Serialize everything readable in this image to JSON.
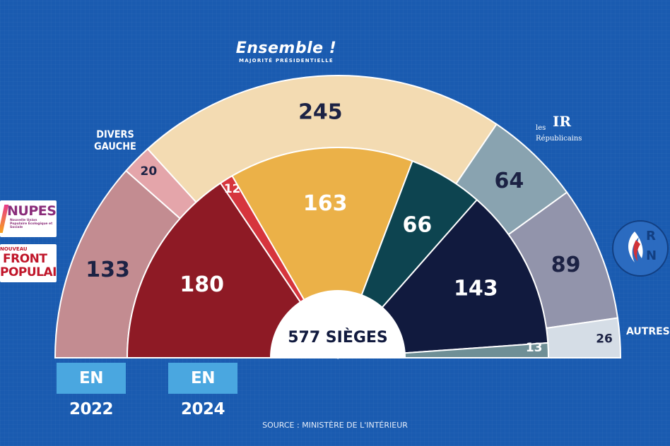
{
  "chart_data": {
    "type": "pie",
    "variant": "hemicycle",
    "title": "",
    "center_label": "577 SIÈGES",
    "source": "SOURCE : MINISTÈRE DE L'INTÉRIEUR",
    "total": 577,
    "rings": [
      {
        "label": "EN 2022",
        "segments": [
          {
            "name": "NUPES",
            "value": 133,
            "color": "#c38c91",
            "text_color": "#1c2244"
          },
          {
            "name": "DIVERS GAUCHE",
            "value": 20,
            "color": "#e4a5aa",
            "text_color": "#1c2244"
          },
          {
            "name": "Ensemble !",
            "value": 245,
            "color": "#f3dbb2",
            "text_color": "#1c2244"
          },
          {
            "name": "Les Républicains",
            "value": 64,
            "color": "#89a3b0",
            "text_color": "#1c2244"
          },
          {
            "name": "RN",
            "value": 89,
            "color": "#9294ab",
            "text_color": "#1c2244"
          },
          {
            "name": "AUTRES",
            "value": 26,
            "color": "#d5dde6",
            "text_color": "#1c2244"
          }
        ]
      },
      {
        "label": "EN 2024",
        "segments": [
          {
            "name": "Nouveau Front Populaire",
            "value": 180,
            "color": "#8e1a25",
            "text_color": "#ffffff"
          },
          {
            "name": "Divers gauche",
            "value": 12,
            "color": "#d6353d",
            "text_color": "#ffffff"
          },
          {
            "name": "Ensemble !",
            "value": 163,
            "color": "#ebb148",
            "text_color": "#ffffff"
          },
          {
            "name": "Les Républicains",
            "value": 66,
            "color": "#0d4450",
            "text_color": "#ffffff"
          },
          {
            "name": "RN",
            "value": 143,
            "color": "#111a3e",
            "text_color": "#ffffff"
          },
          {
            "name": "Autres",
            "value": 13,
            "color": "#6f8f96",
            "text_color": "#ffffff"
          }
        ]
      }
    ]
  },
  "labels": {
    "ensemble_title": "Ensemble !",
    "ensemble_sub": "MAJORITÉ PRÉSIDENTIELLE",
    "divers_gauche": "DIVERS\nGAUCHE",
    "autres": "AUTRES",
    "lr_les": "les",
    "lr_ir": "IR",
    "lr_republicains": "Républicains",
    "rn_r": "R",
    "rn_n": "N",
    "nupes_name": "NUPES",
    "nupes_sub": "Nouvelle Union Populaire Écologique et Sociale",
    "nfp_line1": "NOUVEAU",
    "nfp_line2": "FRONT",
    "nfp_line3": "POPULAIRE",
    "year_2022": "EN 2022",
    "year_2024": "EN 2024"
  },
  "colors": {
    "background": "#1a5bb0",
    "tag": "#4aa7e0",
    "center": "#ffffff"
  }
}
